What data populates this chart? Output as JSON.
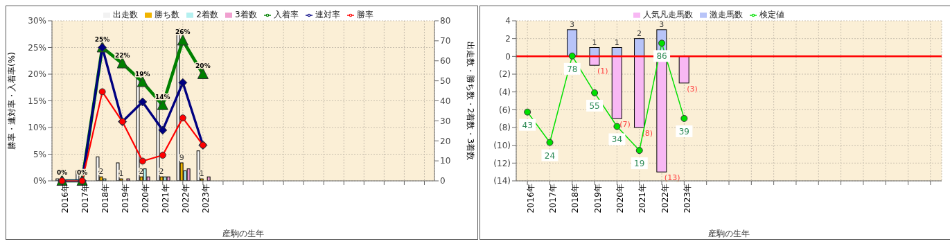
{
  "chart_data": [
    {
      "type": "bar",
      "xlabel": "産駒の生年",
      "ylabel": "勝率・連対率・入着率(%)",
      "y2label": "出走数・勝ち数・2着数・3着数",
      "categories": [
        "2016年",
        "2017年",
        "2018年",
        "2019年",
        "2020年",
        "2021年",
        "2022年",
        "2023年",
        null,
        null,
        null,
        null,
        null,
        null,
        null,
        null,
        null,
        null,
        null
      ],
      "series": [
        {
          "name": "出走数",
          "axis": "y2",
          "color": "#f2f2f2",
          "values": [
            1,
            5,
            12,
            9,
            54,
            42,
            76,
            15,
            null,
            null,
            null,
            null,
            null,
            null,
            null,
            null,
            null,
            null,
            null
          ]
        },
        {
          "name": "勝ち数",
          "axis": "y2",
          "color": "#f0b400",
          "values": [
            0,
            0,
            2,
            1,
            2,
            2,
            9,
            1,
            null,
            null,
            null,
            null,
            null,
            null,
            null,
            null,
            null,
            null,
            null
          ],
          "value_labels": [
            null,
            null,
            "2",
            "1",
            "2",
            "2",
            "9",
            "1",
            null,
            null,
            null,
            null,
            null,
            null,
            null,
            null,
            null,
            null,
            null
          ]
        },
        {
          "name": "2着数",
          "axis": "y2",
          "color": "#b4f0f0",
          "values": [
            0,
            0,
            1,
            0,
            6,
            2,
            5,
            0,
            null,
            null,
            null,
            null,
            null,
            null,
            null,
            null,
            null,
            null,
            null
          ]
        },
        {
          "name": "3着数",
          "axis": "y2",
          "color": "#f0a0d0",
          "values": [
            0,
            0,
            0,
            1,
            2,
            2,
            6,
            2,
            null,
            null,
            null,
            null,
            null,
            null,
            null,
            null,
            null,
            null,
            null
          ]
        },
        {
          "name": "入着率",
          "type": "line",
          "marker": "triangle",
          "color": "#008000",
          "values": [
            0,
            0,
            25,
            22,
            18.5,
            14.2,
            26.3,
            20,
            null,
            null,
            null,
            null,
            null,
            null,
            null,
            null,
            null,
            null,
            null
          ],
          "value_labels": [
            "0%",
            "0%",
            "25%",
            "22%",
            "19%",
            "14%",
            "26%",
            "20%",
            null,
            null,
            null,
            null,
            null,
            null,
            null,
            null,
            null,
            null,
            null
          ]
        },
        {
          "name": "連対率",
          "type": "line",
          "marker": "diamond",
          "color": "#000080",
          "values": [
            0,
            0,
            25,
            11.1,
            14.8,
            9.5,
            18.4,
            6.7,
            null,
            null,
            null,
            null,
            null,
            null,
            null,
            null,
            null,
            null,
            null
          ]
        },
        {
          "name": "勝率",
          "type": "line",
          "marker": "circle",
          "color": "#ff0000",
          "values": [
            0,
            0,
            16.7,
            11.1,
            3.7,
            4.8,
            11.8,
            6.7,
            null,
            null,
            null,
            null,
            null,
            null,
            null,
            null,
            null,
            null,
            null
          ]
        }
      ],
      "ylim": [
        0,
        30
      ],
      "yticks": [
        {
          "value": 0,
          "label": "0%"
        },
        {
          "value": 5,
          "label": "5%"
        },
        {
          "value": 10,
          "label": "10%"
        },
        {
          "value": 15,
          "label": "15%"
        },
        {
          "value": 20,
          "label": "20%"
        },
        {
          "value": 25,
          "label": "25%"
        },
        {
          "value": 30,
          "label": "30%"
        }
      ],
      "y2lim": [
        0,
        80
      ],
      "y2ticks": [
        0,
        10,
        20,
        30,
        40,
        50,
        60,
        70,
        80
      ],
      "grid": true,
      "legend": "top"
    },
    {
      "type": "bar",
      "xlabel": "産駒の生年",
      "stacked": true,
      "categories": [
        "2016年",
        "2017年",
        "2018年",
        "2019年",
        "2020年",
        "2021年",
        "2022年",
        "2023年",
        null,
        null,
        null,
        null,
        null,
        null,
        null,
        null,
        null,
        null,
        null
      ],
      "series": [
        {
          "name": "人気凡走馬数",
          "color": "#f8b8f4",
          "values": [
            0,
            0,
            0,
            -1,
            -7,
            -8,
            -13,
            -3,
            null,
            null,
            null,
            null,
            null,
            null,
            null,
            null,
            null,
            null,
            null
          ],
          "value_labels": [
            null,
            null,
            null,
            "(1)",
            "(7)",
            "(8)",
            "(13)",
            "(3)",
            null,
            null,
            null,
            null,
            null,
            null,
            null,
            null,
            null,
            null,
            null
          ]
        },
        {
          "name": "激走馬数",
          "color": "#b8c4f8",
          "values": [
            0,
            0,
            3,
            1,
            1,
            2,
            3,
            0,
            null,
            null,
            null,
            null,
            null,
            null,
            null,
            null,
            null,
            null,
            null
          ],
          "value_labels": [
            null,
            null,
            "3",
            "1",
            "1",
            "2",
            "3",
            null,
            null,
            null,
            null,
            null,
            null,
            null,
            null,
            null,
            null,
            null,
            null
          ]
        },
        {
          "name": "検定値",
          "type": "line",
          "axis": "y2",
          "marker": "circle",
          "color": "#00e000",
          "values": [
            43,
            24,
            78,
            55,
            34,
            19,
            86,
            39,
            null,
            null,
            null,
            null,
            null,
            null,
            null,
            null,
            null,
            null,
            null
          ],
          "value_labels": [
            "43",
            "24",
            "78",
            "55",
            "34",
            "19",
            "86",
            "39",
            null,
            null,
            null,
            null,
            null,
            null,
            null,
            null,
            null,
            null,
            null
          ]
        }
      ],
      "ylim": [
        -14,
        4
      ],
      "yticks": [
        {
          "value": -14,
          "label": "(14)"
        },
        {
          "value": -12,
          "label": "(12)"
        },
        {
          "value": -10,
          "label": "(10)"
        },
        {
          "value": -8,
          "label": "(8)"
        },
        {
          "value": -6,
          "label": "(6)"
        },
        {
          "value": -4,
          "label": "(4)"
        },
        {
          "value": -2,
          "label": "(2)"
        },
        0,
        2,
        4
      ],
      "y2lim": [
        0,
        100
      ],
      "ref_lines": [
        {
          "axis": "y",
          "value": 0,
          "color": "#ff0000"
        }
      ],
      "grid": true,
      "legend": "top"
    }
  ]
}
